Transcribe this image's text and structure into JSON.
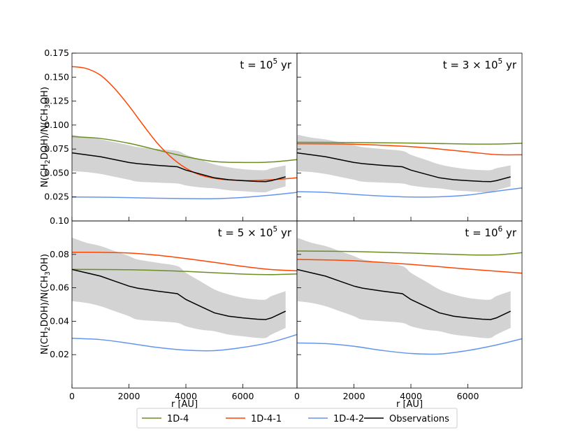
{
  "chart_data": {
    "type": "line",
    "layout": "2x2 grid with shared axes",
    "xlabel": "r [AU]",
    "ylabel": "N(CH2DOH)/N(CH3OH)",
    "ylabel_parts": {
      "a": "N(CH",
      "b": "2",
      "c": "DOH)/N(CH",
      "d": "3",
      "e": "OH)"
    },
    "xlim": [
      0,
      7900
    ],
    "xticks": [
      0,
      2000,
      4000,
      6000
    ],
    "xtick_labels": [
      "0",
      "2000",
      "4000",
      "6000"
    ],
    "legend": {
      "position": "bottom-center",
      "entries": [
        {
          "name": "1D-4",
          "color": "#6b8e23"
        },
        {
          "name": "1D-4-1",
          "color": "#ff4500"
        },
        {
          "name": "1D-4-2",
          "color": "#6495ed"
        },
        {
          "name": "Observations",
          "color": "#000000"
        }
      ]
    },
    "observations_x": [
      0,
      500,
      1000,
      1500,
      2000,
      2300,
      3000,
      3700,
      4000,
      4500,
      5000,
      5500,
      6000,
      6500,
      6800,
      7000,
      7500
    ],
    "observations_y": [
      0.071,
      0.069,
      0.067,
      0.064,
      0.061,
      0.0598,
      0.058,
      0.0565,
      0.053,
      0.049,
      0.045,
      0.043,
      0.042,
      0.0412,
      0.041,
      0.042,
      0.046
    ],
    "observations_lower": [
      0.052,
      0.051,
      0.049,
      0.046,
      0.043,
      0.041,
      0.04,
      0.039,
      0.037,
      0.035,
      0.034,
      0.032,
      0.031,
      0.03,
      0.03,
      0.032,
      0.036
    ],
    "observations_upper": [
      0.09,
      0.087,
      0.085,
      0.082,
      0.079,
      0.077,
      0.075,
      0.073,
      0.069,
      0.064,
      0.059,
      0.056,
      0.054,
      0.053,
      0.053,
      0.055,
      0.058
    ],
    "panels": [
      {
        "title_prefix": "t = 10",
        "title_exp": "5",
        "title_suffix": " yr",
        "ylim": [
          0,
          0.175
        ],
        "yticks": [
          0.025,
          0.05,
          0.075,
          0.1,
          0.125,
          0.15,
          0.175
        ],
        "ytick_labels": [
          "0.025",
          "0.050",
          "0.075",
          "0.100",
          "0.125",
          "0.150",
          "0.175"
        ],
        "series": [
          {
            "name": "1D-4",
            "x": [
              0,
              1000,
              2000,
              3000,
              4000,
              5000,
              6000,
              7000,
              7900
            ],
            "y": [
              0.088,
              0.086,
              0.081,
              0.074,
              0.067,
              0.062,
              0.061,
              0.0615,
              0.064
            ]
          },
          {
            "name": "1D-4-1",
            "x": [
              0,
              500,
              1000,
              1500,
              2000,
              2500,
              3000,
              3500,
              4000,
              4500,
              5000,
              5500,
              6000,
              6500,
              7000,
              7500,
              7900
            ],
            "y": [
              0.161,
              0.159,
              0.152,
              0.138,
              0.12,
              0.1,
              0.081,
              0.066,
              0.055,
              0.048,
              0.0445,
              0.0428,
              0.0422,
              0.0422,
              0.043,
              0.044,
              0.045
            ]
          },
          {
            "name": "1D-4-2",
            "x": [
              0,
              1000,
              2000,
              3000,
              4000,
              5000,
              6000,
              7000,
              7900
            ],
            "y": [
              0.025,
              0.0248,
              0.0243,
              0.0237,
              0.0233,
              0.0232,
              0.0245,
              0.027,
              0.0298
            ]
          }
        ]
      },
      {
        "title_prefix": "t = 3 × 10",
        "title_exp": "5",
        "title_suffix": " yr",
        "ylim": [
          0,
          0.175
        ],
        "yticks": [
          0.025,
          0.05,
          0.075,
          0.1,
          0.125,
          0.15,
          0.175
        ],
        "ytick_labels": [],
        "series": [
          {
            "name": "1D-4",
            "x": [
              0,
              2000,
              4000,
              6000,
              7000,
              7900
            ],
            "y": [
              0.082,
              0.0818,
              0.0812,
              0.0802,
              0.0802,
              0.081
            ]
          },
          {
            "name": "1D-4-1",
            "x": [
              0,
              2000,
              4000,
              5000,
              6000,
              7000,
              7900
            ],
            "y": [
              0.0805,
              0.08,
              0.0775,
              0.075,
              0.072,
              0.0692,
              0.069
            ]
          },
          {
            "name": "1D-4-2",
            "x": [
              0,
              1000,
              2000,
              3000,
              4000,
              5000,
              6000,
              7000,
              7900
            ],
            "y": [
              0.0305,
              0.0298,
              0.0277,
              0.026,
              0.025,
              0.0252,
              0.027,
              0.031,
              0.0345
            ]
          }
        ]
      },
      {
        "title_prefix": "t = 5 × 10",
        "title_exp": "5",
        "title_suffix": " yr",
        "ylim": [
          0,
          0.1
        ],
        "yticks": [
          0.02,
          0.04,
          0.06,
          0.08,
          0.1
        ],
        "ytick_labels": [
          "0.02",
          "0.04",
          "0.06",
          "0.08",
          "0.10"
        ],
        "series": [
          {
            "name": "1D-4",
            "x": [
              0,
              2000,
              4000,
              6000,
              7000,
              7900
            ],
            "y": [
              0.071,
              0.0708,
              0.0698,
              0.0682,
              0.0679,
              0.0683
            ]
          },
          {
            "name": "1D-4-1",
            "x": [
              0,
              1000,
              2000,
              3000,
              4000,
              5000,
              6000,
              7000,
              7900
            ],
            "y": [
              0.0813,
              0.0812,
              0.0808,
              0.0795,
              0.0775,
              0.0752,
              0.0728,
              0.0709,
              0.0702
            ]
          },
          {
            "name": "1D-4-2",
            "x": [
              0,
              1000,
              2000,
              3000,
              4000,
              5000,
              6000,
              7000,
              7900
            ],
            "y": [
              0.0298,
              0.029,
              0.0268,
              0.0243,
              0.0227,
              0.0224,
              0.0243,
              0.0275,
              0.032
            ]
          }
        ]
      },
      {
        "title_prefix": "t = 10",
        "title_exp": "6",
        "title_suffix": " yr",
        "ylim": [
          0,
          0.1
        ],
        "yticks": [
          0.02,
          0.04,
          0.06,
          0.08,
          0.1
        ],
        "ytick_labels": [],
        "series": [
          {
            "name": "1D-4",
            "x": [
              0,
              2000,
              4000,
              6000,
              7000,
              7900
            ],
            "y": [
              0.082,
              0.0817,
              0.0808,
              0.0797,
              0.0797,
              0.081
            ]
          },
          {
            "name": "1D-4-1",
            "x": [
              0,
              2000,
              4000,
              6000,
              7900
            ],
            "y": [
              0.077,
              0.0762,
              0.074,
              0.0712,
              0.0688
            ]
          },
          {
            "name": "1D-4-2",
            "x": [
              0,
              1000,
              2000,
              3000,
              4000,
              5000,
              6000,
              7000,
              7900
            ],
            "y": [
              0.027,
              0.0266,
              0.025,
              0.0225,
              0.0207,
              0.0204,
              0.0225,
              0.0258,
              0.0295
            ]
          }
        ]
      }
    ]
  }
}
